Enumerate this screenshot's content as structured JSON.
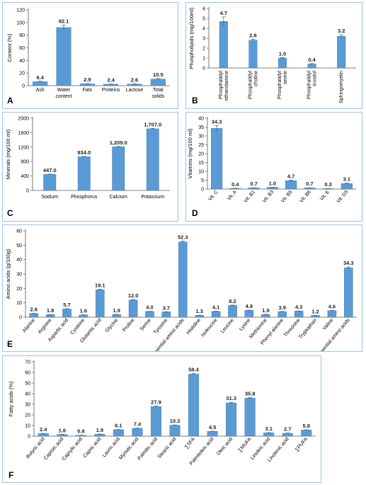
{
  "colors": {
    "bar": "#5b9bd5",
    "bar_edge": "#41719c",
    "axis": "#595959",
    "error": "#404040",
    "frame": "#9dc3e6"
  },
  "chart_data": [
    {
      "panel": "A",
      "type": "bar",
      "ylabel": "Content (%)",
      "ylim": [
        0,
        120
      ],
      "yticks": [
        0,
        20,
        40,
        60,
        80,
        100,
        120
      ],
      "tick_format": "plain",
      "categories": [
        "Ash",
        "Water content",
        "Fats",
        "Proteins",
        "Lactose",
        "Total solids"
      ],
      "values": [
        6.4,
        92.1,
        2.9,
        2.4,
        2.6,
        10.5
      ],
      "labels": [
        "6.4",
        "92.1",
        "2.9",
        "2.4",
        "2.6",
        "10.5"
      ],
      "errors": [
        0.6,
        4.0,
        0.3,
        0.3,
        0.3,
        0.8
      ],
      "rotate": false,
      "wrap": true
    },
    {
      "panel": "B",
      "type": "bar",
      "ylabel": "Phospholipids (mg/100ml)",
      "ylim": [
        0,
        6
      ],
      "yticks": [
        0,
        1,
        2,
        3,
        4,
        5,
        6
      ],
      "tick_format": "plain",
      "categories": [
        "Phosphatidyl ethanolamine",
        "Phosphatidyl choline",
        "Phosphatidyl serine",
        "Phosphatidyl inositol",
        "Sphingomyelin"
      ],
      "values": [
        4.7,
        2.8,
        1.0,
        0.4,
        3.2
      ],
      "labels": [
        "4.7",
        "2.8",
        "1.0",
        "0.4",
        "3.2"
      ],
      "errors": [
        0.45,
        0.1,
        0.05,
        0.04,
        0.15
      ],
      "rotate": true,
      "wrap": true
    },
    {
      "panel": "C",
      "type": "bar",
      "ylabel": "Minerals (mg/100 ml)",
      "ylim": [
        0,
        2000
      ],
      "yticks": [
        0,
        400,
        800,
        1200,
        1600,
        2000
      ],
      "tick_format": "plain",
      "categories": [
        "Sodium",
        "Phosphorus",
        "Calcium",
        "Potassium"
      ],
      "values": [
        447.0,
        934.0,
        1209.0,
        1707.0
      ],
      "labels": [
        "447.0",
        "934.0",
        "1,209.0",
        "1,707.0"
      ],
      "errors": [
        5,
        8,
        10,
        12
      ],
      "rotate": false,
      "wrap": false
    },
    {
      "panel": "D",
      "type": "bar",
      "ylabel": "Vitamins (mg/100 ml)",
      "ylim": [
        0,
        40
      ],
      "yticks": [
        0,
        5,
        10,
        15,
        20,
        25,
        30,
        35,
        40
      ],
      "tick_format": "plain",
      "categories": [
        "Vit. C",
        "Vit. A",
        "Vit. B1",
        "Vit. B3",
        "Vit. B5",
        "Vit. B6",
        "Vit. E",
        "Vit. D3"
      ],
      "values": [
        34.3,
        0.4,
        0.7,
        1.0,
        4.7,
        0.7,
        0.3,
        3.1
      ],
      "labels": [
        "34.3",
        "0.4",
        "0.7",
        "1.0",
        "4.7",
        "0.7",
        "0.3",
        "3.1"
      ],
      "errors": [
        1.6,
        0.05,
        0.05,
        0.05,
        0.4,
        0.05,
        0.05,
        0.3
      ],
      "rotate": true,
      "wrap": false
    },
    {
      "panel": "E",
      "type": "bar",
      "ylabel": "Amino acids (g/100g)",
      "ylim": [
        0,
        60
      ],
      "yticks": [
        0,
        10,
        20,
        30,
        40,
        50,
        60
      ],
      "tick_format": "plain",
      "categories": [
        "Alanine",
        "Arginine",
        "Aspartic acid",
        "Cysteine",
        "Glutamic acid",
        "Glycine",
        "Proline",
        "Serine",
        "Tyrosine",
        "∑Non-essential amino acids",
        "Histidine",
        "Isoleucine",
        "Leucine",
        "Lysine",
        "Methionine",
        "Phenyl alanine",
        "Threonine",
        "Tryptophan",
        "Valine",
        "∑Essential amino acids"
      ],
      "values": [
        2.6,
        1.8,
        5.7,
        1.6,
        19.1,
        1.9,
        12.0,
        4.0,
        3.7,
        52.3,
        1.3,
        4.1,
        8.2,
        4.8,
        1.9,
        3.9,
        4.3,
        1.2,
        4.6,
        34.3
      ],
      "labels": [
        "2.6",
        "1.8",
        "5.7",
        "1.6",
        "19.1",
        "1.9",
        "12.0",
        "4.0",
        "3.7",
        "52.3",
        "1.3",
        "4.1",
        "8.2",
        "4.8",
        "1.9",
        "3.9",
        "4.3",
        "1.2",
        "4.6",
        "34.3"
      ],
      "errors": [
        0.1,
        0.1,
        0.2,
        0.1,
        0.3,
        0.1,
        0.3,
        0.1,
        0.1,
        0.6,
        0.1,
        0.1,
        0.2,
        0.1,
        0.1,
        0.1,
        0.1,
        0.1,
        0.1,
        0.6
      ],
      "rotate": true,
      "wrap": false
    },
    {
      "panel": "F",
      "type": "bar",
      "ylabel": "Fatty acids (%)",
      "ylim": [
        0,
        70
      ],
      "yticks": [
        0,
        10,
        20,
        30,
        40,
        50,
        60,
        70
      ],
      "tick_format": "plain",
      "categories": [
        "Butyric acid",
        "Caproic acid",
        "Caprylic acid",
        "Capric acid",
        "Lauric acid",
        "Myristic acid",
        "Palmitic acid",
        "Stearic acid",
        "∑SFA",
        "Palmitoleic acid",
        "Oleic acid",
        "∑MUFA",
        "Linoleic acid",
        "Linolenic acid",
        "∑PUFA"
      ],
      "values": [
        2.4,
        1.6,
        0.8,
        1.9,
        6.1,
        7.4,
        27.9,
        10.3,
        58.4,
        4.5,
        31.3,
        35.8,
        3.1,
        2.7,
        5.8
      ],
      "labels": [
        "2.4",
        "1.6",
        "0.8",
        "1.9",
        "6.1",
        "7.4",
        "27.9",
        "10.3",
        "58.4",
        "4.5",
        "31.3",
        "35.8",
        "3.1",
        "2.7",
        "5.8"
      ],
      "errors": [
        0.2,
        0.1,
        0.1,
        0.1,
        0.2,
        0.2,
        0.4,
        0.3,
        0.6,
        0.2,
        0.6,
        0.6,
        0.2,
        0.2,
        0.2
      ],
      "rotate": true,
      "wrap": false
    }
  ]
}
